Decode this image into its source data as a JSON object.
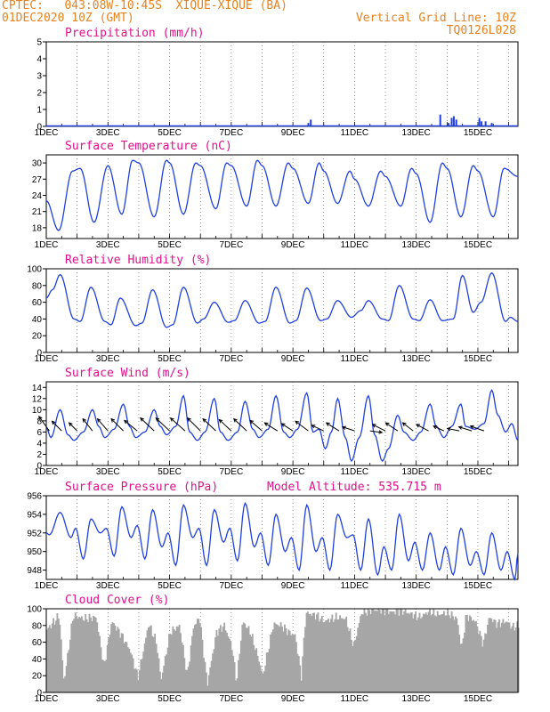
{
  "header": {
    "line1": "CPTEC:   043:08W-10:45S  XIQUE-XIQUE (BA)",
    "line2": "01DEC2020 10Z (GMT)",
    "right1": "Vertical Grid Line: 10Z",
    "right2": "TQ0126L028"
  },
  "colors": {
    "series": "#2040e0",
    "title": "#e0108c",
    "header": "#e8821e",
    "cloud": "#a6a6a6",
    "wind_arrow": "#000000"
  },
  "x_ticks": [
    "1DEC",
    "3DEC",
    "5DEC",
    "7DEC",
    "9DEC",
    "11DEC",
    "13DEC",
    "15DEC"
  ],
  "chart_data": [
    {
      "id": "precip",
      "type": "bar",
      "title": "Precipitation (mm/h)",
      "ylim": [
        0,
        5
      ],
      "yticks": [
        0,
        1,
        2,
        3,
        4,
        5
      ],
      "x_range_days": [
        0,
        15.3
      ],
      "points": [
        [
          8.5,
          0.2
        ],
        [
          8.58,
          0.4
        ],
        [
          12.78,
          0.7
        ],
        [
          13.05,
          0.2
        ],
        [
          13.15,
          0.5
        ],
        [
          13.22,
          0.6
        ],
        [
          13.3,
          0.4
        ],
        [
          14.05,
          0.5
        ],
        [
          14.12,
          0.3
        ],
        [
          14.25,
          0.3
        ],
        [
          14.45,
          0.2
        ]
      ]
    },
    {
      "id": "temp",
      "type": "line",
      "title": "Surface Temperature (nC)",
      "ylim": [
        16,
        31.5
      ],
      "yticks": [
        18,
        21,
        24,
        27,
        30
      ],
      "x_range_days": [
        0,
        15.3
      ],
      "extrema": [
        [
          0,
          23
        ],
        [
          0.4,
          17.5
        ],
        [
          0.85,
          28.5
        ],
        [
          1.1,
          29
        ],
        [
          1.55,
          19
        ],
        [
          2.0,
          29.5
        ],
        [
          2.45,
          20.5
        ],
        [
          2.8,
          30.5
        ],
        [
          3.0,
          30
        ],
        [
          3.5,
          20
        ],
        [
          3.9,
          30.5
        ],
        [
          4.0,
          30
        ],
        [
          4.45,
          20.5
        ],
        [
          4.85,
          30
        ],
        [
          5.0,
          29.5
        ],
        [
          5.5,
          21.5
        ],
        [
          5.85,
          30
        ],
        [
          6.0,
          29.5
        ],
        [
          6.5,
          22
        ],
        [
          6.85,
          30.5
        ],
        [
          7.0,
          29.5
        ],
        [
          7.45,
          22
        ],
        [
          7.85,
          30
        ],
        [
          8.0,
          29
        ],
        [
          8.5,
          22.5
        ],
        [
          8.85,
          30
        ],
        [
          9.0,
          28.5
        ],
        [
          9.45,
          22.5
        ],
        [
          9.85,
          28.5
        ],
        [
          10.0,
          27
        ],
        [
          10.45,
          22
        ],
        [
          10.85,
          28.5
        ],
        [
          11.0,
          27.5
        ],
        [
          11.5,
          22
        ],
        [
          11.85,
          29
        ],
        [
          12.0,
          28
        ],
        [
          12.45,
          19
        ],
        [
          12.85,
          30
        ],
        [
          13.0,
          29
        ],
        [
          13.45,
          20
        ],
        [
          13.85,
          29.5
        ],
        [
          14.0,
          28.5
        ],
        [
          14.5,
          20
        ],
        [
          14.85,
          29
        ],
        [
          15.3,
          27.5
        ]
      ]
    },
    {
      "id": "rh",
      "type": "line",
      "title": "Relative Humidity (%)",
      "ylim": [
        0,
        100
      ],
      "yticks": [
        0,
        20,
        40,
        60,
        80,
        100
      ],
      "x_range_days": [
        0,
        15.3
      ],
      "extrema": [
        [
          0,
          65
        ],
        [
          0.2,
          75
        ],
        [
          0.45,
          93
        ],
        [
          0.9,
          40
        ],
        [
          1.1,
          37
        ],
        [
          1.45,
          78
        ],
        [
          1.9,
          37
        ],
        [
          2.1,
          33
        ],
        [
          2.4,
          65
        ],
        [
          2.9,
          32
        ],
        [
          3.1,
          35
        ],
        [
          3.45,
          75
        ],
        [
          3.9,
          30
        ],
        [
          4.1,
          33
        ],
        [
          4.45,
          78
        ],
        [
          4.9,
          35
        ],
        [
          5.1,
          40
        ],
        [
          5.45,
          60
        ],
        [
          5.9,
          36
        ],
        [
          6.1,
          38
        ],
        [
          6.45,
          62
        ],
        [
          6.9,
          35
        ],
        [
          7.1,
          37
        ],
        [
          7.45,
          78
        ],
        [
          7.9,
          35
        ],
        [
          8.1,
          38
        ],
        [
          8.45,
          77
        ],
        [
          8.9,
          38
        ],
        [
          9.1,
          40
        ],
        [
          9.45,
          62
        ],
        [
          9.9,
          42
        ],
        [
          10.2,
          50
        ],
        [
          10.45,
          62
        ],
        [
          10.9,
          40
        ],
        [
          11.1,
          38
        ],
        [
          11.45,
          80
        ],
        [
          11.9,
          40
        ],
        [
          12.1,
          38
        ],
        [
          12.45,
          63
        ],
        [
          12.85,
          38
        ],
        [
          13.2,
          40
        ],
        [
          13.5,
          92
        ],
        [
          13.85,
          48
        ],
        [
          14.1,
          60
        ],
        [
          14.45,
          95
        ],
        [
          14.9,
          37
        ],
        [
          15.05,
          42
        ],
        [
          15.3,
          37
        ]
      ]
    },
    {
      "id": "wind",
      "type": "line",
      "title": "Surface Wind (m/s)",
      "ylim": [
        0,
        15
      ],
      "yticks": [
        0,
        2,
        4,
        6,
        8,
        10,
        12,
        14
      ],
      "x_range_days": [
        0,
        15.3
      ],
      "extrema": [
        [
          0,
          6.8
        ],
        [
          0.15,
          5
        ],
        [
          0.45,
          10
        ],
        [
          0.7,
          5.5
        ],
        [
          0.9,
          4.5
        ],
        [
          1.2,
          6
        ],
        [
          1.5,
          10
        ],
        [
          1.7,
          7
        ],
        [
          1.9,
          5
        ],
        [
          2.2,
          6.5
        ],
        [
          2.5,
          11
        ],
        [
          2.7,
          7
        ],
        [
          2.9,
          5
        ],
        [
          3.2,
          6
        ],
        [
          3.5,
          10
        ],
        [
          3.7,
          7
        ],
        [
          3.9,
          5.5
        ],
        [
          4.2,
          7
        ],
        [
          4.45,
          12.5
        ],
        [
          4.65,
          6
        ],
        [
          4.9,
          4.5
        ],
        [
          5.15,
          6
        ],
        [
          5.45,
          12
        ],
        [
          5.65,
          6
        ],
        [
          5.9,
          4.5
        ],
        [
          6.2,
          6
        ],
        [
          6.45,
          11.5
        ],
        [
          6.7,
          6.5
        ],
        [
          6.9,
          5
        ],
        [
          7.2,
          6.5
        ],
        [
          7.45,
          12.5
        ],
        [
          7.7,
          6
        ],
        [
          7.9,
          5
        ],
        [
          8.15,
          6.5
        ],
        [
          8.45,
          13
        ],
        [
          8.65,
          6
        ],
        [
          8.85,
          6.5
        ],
        [
          9.05,
          3
        ],
        [
          9.25,
          6
        ],
        [
          9.45,
          12
        ],
        [
          9.7,
          5
        ],
        [
          9.9,
          0.8
        ],
        [
          10.15,
          5
        ],
        [
          10.45,
          12.5
        ],
        [
          10.65,
          5.5
        ],
        [
          10.9,
          0.8
        ],
        [
          11.1,
          3
        ],
        [
          11.4,
          9
        ],
        [
          11.6,
          6
        ],
        [
          11.9,
          4.5
        ],
        [
          12.15,
          6
        ],
        [
          12.45,
          11
        ],
        [
          12.65,
          7
        ],
        [
          12.9,
          5
        ],
        [
          13.15,
          7
        ],
        [
          13.45,
          11
        ],
        [
          13.6,
          7
        ],
        [
          13.9,
          6.5
        ],
        [
          14.2,
          7.5
        ],
        [
          14.45,
          13.5
        ],
        [
          14.65,
          9
        ],
        [
          14.9,
          6
        ],
        [
          15.1,
          7.5
        ],
        [
          15.3,
          4.5
        ]
      ],
      "vectors": [
        [
          0.1,
          -1.3,
          1.8
        ],
        [
          0.5,
          -1.2,
          1.2
        ],
        [
          1.0,
          -1.0,
          1.0
        ],
        [
          1.5,
          -1.2,
          1.5
        ],
        [
          2.0,
          -1.3,
          1.5
        ],
        [
          2.5,
          -1.5,
          1.5
        ],
        [
          2.95,
          -1.6,
          1.3
        ],
        [
          3.5,
          -1.7,
          1.6
        ],
        [
          4.0,
          -1.7,
          1.6
        ],
        [
          4.5,
          -1.8,
          1.6
        ],
        [
          5.0,
          -1.6,
          1.6
        ],
        [
          5.5,
          -1.6,
          1.5
        ],
        [
          6.0,
          -1.5,
          1.4
        ],
        [
          6.5,
          -1.6,
          1.5
        ],
        [
          7.0,
          -1.5,
          1.3
        ],
        [
          7.5,
          -1.6,
          1.0
        ],
        [
          8.0,
          -1.4,
          0.9
        ],
        [
          8.5,
          -1.6,
          1.2
        ],
        [
          9.0,
          -1.5,
          0.7
        ],
        [
          9.5,
          -1.6,
          1.0
        ],
        [
          10.0,
          -1.5,
          0.5
        ],
        [
          10.5,
          1.5,
          -0.2
        ],
        [
          11.0,
          -1.6,
          0.8
        ],
        [
          11.4,
          -1.5,
          1.0
        ],
        [
          11.9,
          -1.3,
          1.0
        ],
        [
          12.4,
          -1.5,
          0.8
        ],
        [
          12.9,
          -1.3,
          0.6
        ],
        [
          13.4,
          -1.5,
          0.3
        ],
        [
          13.8,
          -1.6,
          0.5
        ],
        [
          14.2,
          -1.7,
          0.6
        ]
      ]
    },
    {
      "id": "pressure",
      "type": "line",
      "title": "Surface Pressure (hPa)",
      "subtitle": "Model Altitude: 535.715  m",
      "ylim": [
        947,
        956
      ],
      "yticks": [
        948,
        950,
        952,
        954,
        956
      ],
      "x_range_days": [
        0,
        15.3
      ],
      "extrema": [
        [
          0,
          952
        ],
        [
          0.1,
          951.8
        ],
        [
          0.45,
          954.2
        ],
        [
          0.8,
          951.5
        ],
        [
          0.95,
          952.5
        ],
        [
          1.2,
          949.2
        ],
        [
          1.45,
          953.5
        ],
        [
          1.75,
          952
        ],
        [
          1.95,
          952.5
        ],
        [
          2.2,
          949.5
        ],
        [
          2.45,
          954.8
        ],
        [
          2.75,
          951.5
        ],
        [
          2.95,
          952.8
        ],
        [
          3.2,
          949.2
        ],
        [
          3.45,
          954.5
        ],
        [
          3.75,
          950.5
        ],
        [
          3.95,
          952
        ],
        [
          4.2,
          948.5
        ],
        [
          4.45,
          955
        ],
        [
          4.75,
          951.5
        ],
        [
          4.95,
          952.5
        ],
        [
          5.2,
          948.5
        ],
        [
          5.45,
          954.5
        ],
        [
          5.75,
          951
        ],
        [
          5.95,
          952.5
        ],
        [
          6.2,
          949
        ],
        [
          6.45,
          955.2
        ],
        [
          6.75,
          950.5
        ],
        [
          6.95,
          952
        ],
        [
          7.2,
          948.5
        ],
        [
          7.45,
          954
        ],
        [
          7.75,
          950
        ],
        [
          7.95,
          951.5
        ],
        [
          8.2,
          948
        ],
        [
          8.45,
          955
        ],
        [
          8.75,
          950
        ],
        [
          8.95,
          951.5
        ],
        [
          9.2,
          948
        ],
        [
          9.45,
          954
        ],
        [
          9.75,
          951.5
        ],
        [
          9.95,
          951.8
        ],
        [
          10.2,
          948
        ],
        [
          10.45,
          953.5
        ],
        [
          10.75,
          947.5
        ],
        [
          10.95,
          950.5
        ],
        [
          11.2,
          948
        ],
        [
          11.45,
          954
        ],
        [
          11.75,
          949
        ],
        [
          11.95,
          951
        ],
        [
          12.2,
          948
        ],
        [
          12.45,
          952
        ],
        [
          12.75,
          948
        ],
        [
          12.95,
          950.5
        ],
        [
          13.2,
          947.5
        ],
        [
          13.45,
          952.5
        ],
        [
          13.75,
          948.5
        ],
        [
          13.95,
          950
        ],
        [
          14.2,
          947.5
        ],
        [
          14.45,
          952
        ],
        [
          14.75,
          948
        ],
        [
          14.95,
          950
        ],
        [
          15.2,
          947
        ],
        [
          15.3,
          949.8
        ]
      ]
    },
    {
      "id": "cloud",
      "type": "area",
      "title": "Cloud Cover (%)",
      "ylim": [
        0,
        100
      ],
      "yticks": [
        0,
        20,
        40,
        60,
        80,
        100
      ],
      "x_range_days": [
        0,
        15.3
      ],
      "extrema": [
        [
          0,
          75
        ],
        [
          0.4,
          92
        ],
        [
          0.55,
          12
        ],
        [
          0.85,
          92
        ],
        [
          1.2,
          88
        ],
        [
          1.6,
          90
        ],
        [
          1.85,
          30
        ],
        [
          2.1,
          85
        ],
        [
          2.4,
          70
        ],
        [
          2.7,
          50
        ],
        [
          2.95,
          18
        ],
        [
          3.3,
          82
        ],
        [
          3.55,
          60
        ],
        [
          3.7,
          15
        ],
        [
          4.0,
          72
        ],
        [
          4.3,
          80
        ],
        [
          4.55,
          20
        ],
        [
          4.75,
          78
        ],
        [
          4.95,
          90
        ],
        [
          5.2,
          10
        ],
        [
          5.5,
          72
        ],
        [
          5.75,
          80
        ],
        [
          6.0,
          55
        ],
        [
          6.15,
          12
        ],
        [
          6.35,
          85
        ],
        [
          6.6,
          72
        ],
        [
          6.85,
          42
        ],
        [
          7.0,
          20
        ],
        [
          7.35,
          82
        ],
        [
          7.6,
          80
        ],
        [
          7.85,
          72
        ],
        [
          8.05,
          68
        ],
        [
          8.25,
          20
        ],
        [
          8.4,
          95
        ],
        [
          8.75,
          92
        ],
        [
          9.0,
          85
        ],
        [
          9.4,
          90
        ],
        [
          9.7,
          88
        ],
        [
          9.95,
          55
        ],
        [
          10.2,
          95
        ],
        [
          10.5,
          98
        ],
        [
          10.85,
          99
        ],
        [
          11.2,
          96
        ],
        [
          11.5,
          98
        ],
        [
          11.8,
          94
        ],
        [
          12.1,
          90
        ],
        [
          12.4,
          97
        ],
        [
          12.7,
          93
        ],
        [
          13.0,
          95
        ],
        [
          13.3,
          88
        ],
        [
          13.45,
          52
        ],
        [
          13.6,
          92
        ],
        [
          13.9,
          85
        ],
        [
          14.15,
          58
        ],
        [
          14.35,
          90
        ],
        [
          14.6,
          82
        ],
        [
          14.9,
          85
        ],
        [
          15.1,
          78
        ],
        [
          15.3,
          80
        ]
      ]
    }
  ]
}
